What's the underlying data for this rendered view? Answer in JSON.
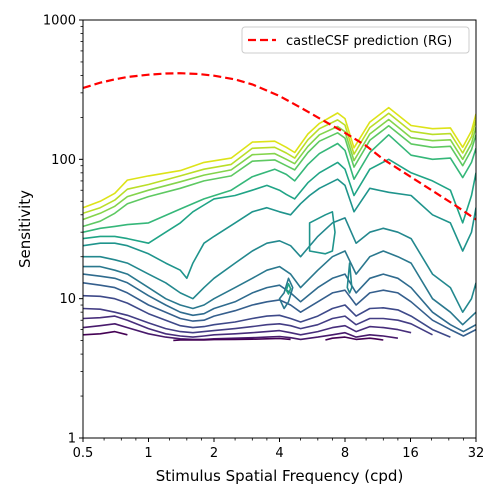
{
  "chart_data": {
    "type": "line",
    "title": "",
    "xlabel": "Stimulus Spatial Frequency (cpd)",
    "ylabel": "Sensitivity",
    "x_scale": "log2",
    "y_scale": "log10",
    "xlim": [
      0.5,
      32
    ],
    "ylim": [
      1,
      1000
    ],
    "x_ticks": [
      0.5,
      1,
      2,
      4,
      8,
      16,
      32
    ],
    "x_tick_labels": [
      "0.5",
      "1",
      "2",
      "4",
      "8",
      "16",
      "32"
    ],
    "y_ticks": [
      1,
      10,
      100,
      1000
    ],
    "y_tick_labels": [
      "1",
      "10",
      "100",
      "1000"
    ],
    "grid": false,
    "legend": {
      "placement": "top-right",
      "entries": [
        "castleCSF prediction (RG)"
      ]
    },
    "prediction_series": {
      "name": "castleCSF prediction (RG)",
      "color": "#ff0000",
      "style": "dashed",
      "x": [
        0.5,
        0.6,
        0.7,
        0.8,
        1.0,
        1.2,
        1.4,
        1.7,
        2.0,
        2.5,
        3.0,
        4.0,
        5.0,
        6.0,
        8.0,
        10.0,
        12.0,
        16.0,
        20.0,
        25.0,
        32.0
      ],
      "y": [
        325,
        355,
        375,
        390,
        405,
        413,
        415,
        410,
        398,
        375,
        345,
        285,
        235,
        200,
        155,
        125,
        100,
        75,
        60,
        48,
        37
      ]
    },
    "contour_lines": [
      {
        "color": "#dde318",
        "x": [
          0.5,
          0.6,
          0.7,
          0.8,
          1.0,
          1.4,
          1.8,
          2.4,
          3.0,
          3.8,
          4.3,
          4.7,
          5.4,
          6.1,
          7.4,
          8.0,
          8.8,
          10.4,
          12.7,
          16.1,
          20.2,
          24.4,
          27.8,
          30.5,
          32.0
        ],
        "y": [
          45,
          50,
          57,
          71,
          76,
          83,
          95,
          102,
          133,
          135,
          122,
          112,
          152,
          181,
          215,
          196,
          121,
          185,
          235,
          175,
          166,
          168,
          122,
          160,
          212
        ]
      },
      {
        "color": "#bade28",
        "x": [
          0.5,
          0.6,
          0.7,
          0.8,
          1.0,
          1.4,
          1.8,
          2.4,
          3.0,
          3.8,
          4.3,
          4.7,
          5.4,
          6.1,
          7.4,
          8.0,
          8.8,
          10.4,
          12.7,
          16.1,
          20.2,
          24.4,
          27.8,
          30.5,
          32.0
        ],
        "y": [
          41,
          45,
          51,
          61,
          66,
          76,
          85,
          92,
          120,
          122,
          111,
          102,
          138,
          166,
          192,
          176,
          109,
          169,
          214,
          159,
          151,
          153,
          111,
          145,
          192
        ]
      },
      {
        "color": "#84d44b",
        "x": [
          0.5,
          0.6,
          0.7,
          0.8,
          1.0,
          1.4,
          1.8,
          2.4,
          3.0,
          3.8,
          4.3,
          4.7,
          5.4,
          6.1,
          7.4,
          8.0,
          8.8,
          10.4,
          12.7,
          16.1,
          20.2,
          24.4,
          27.8,
          30.5,
          32.0
        ],
        "y": [
          37,
          41,
          46,
          54,
          60,
          69,
          77,
          84,
          108,
          110,
          100,
          93,
          124,
          150,
          172,
          158,
          98,
          152,
          193,
          143,
          136,
          138,
          100,
          130,
          170
        ]
      },
      {
        "color": "#5ec962",
        "x": [
          0.5,
          0.6,
          0.7,
          0.8,
          1.0,
          1.4,
          1.8,
          2.4,
          3.0,
          3.8,
          4.3,
          4.7,
          5.4,
          6.1,
          7.4,
          8.0,
          8.8,
          10.4,
          12.7,
          16.1,
          20.2,
          24.4,
          27.8,
          30.5,
          32.0
        ],
        "y": [
          33,
          36,
          41,
          48,
          54,
          62,
          70,
          76,
          97,
          99,
          90,
          84,
          112,
          135,
          155,
          142,
          88,
          137,
          174,
          129,
          122,
          124,
          90,
          117,
          150
        ]
      },
      {
        "color": "#35b779",
        "x": [
          0.5,
          0.6,
          0.7,
          0.8,
          1.0,
          1.4,
          1.8,
          2.4,
          3.0,
          3.8,
          4.3,
          4.7,
          5.4,
          6.1,
          7.4,
          8.0,
          8.8,
          10.4,
          12.7,
          16.1,
          20.2,
          24.4,
          27.8,
          30.5,
          32.0
        ],
        "y": [
          30,
          32,
          33,
          34,
          35,
          44,
          52,
          60,
          75,
          85,
          78,
          70,
          92,
          110,
          130,
          116,
          72,
          112,
          150,
          107,
          100,
          102,
          74,
          95,
          120
        ]
      },
      {
        "color": "#20a486",
        "x": [
          0.5,
          0.6,
          0.7,
          0.8,
          1.0,
          1.2,
          1.4,
          1.6,
          1.8,
          2.0,
          2.5,
          3.0,
          3.5,
          4.0,
          4.3,
          4.7,
          5.4,
          6.1,
          7.4,
          8.0,
          8.8,
          10.4,
          12.7,
          16.1,
          20.2,
          24.4,
          27.8,
          30.5,
          32.0
        ],
        "y": [
          27,
          28,
          28,
          27,
          25,
          30,
          35,
          42,
          47,
          52,
          55,
          60,
          65,
          60,
          56,
          52,
          68,
          80,
          95,
          85,
          55,
          85,
          100,
          80,
          70,
          60,
          35,
          55,
          80
        ]
      },
      {
        "color": "#1f948c",
        "x": [
          0.5,
          0.6,
          0.7,
          0.8,
          1.0,
          1.2,
          1.4,
          1.5,
          1.6,
          1.8,
          2.0,
          2.5,
          3.0,
          3.5,
          4.0,
          4.5,
          5.0,
          5.5,
          6.1,
          7.4,
          8.0,
          8.8,
          10.4,
          12.7,
          16.1,
          20.2,
          24.4,
          27.8,
          30.5,
          32.0
        ],
        "y": [
          24,
          25,
          25,
          24,
          21,
          18,
          16,
          14,
          18,
          25,
          28,
          35,
          42,
          45,
          42,
          40,
          48,
          55,
          62,
          72,
          65,
          42,
          62,
          58,
          55,
          40,
          35,
          22,
          30,
          45
        ]
      },
      {
        "color": "#23888e",
        "x": [
          0.5,
          0.6,
          0.7,
          0.8,
          1.0,
          1.2,
          1.4,
          1.6,
          1.8,
          2.0,
          2.5,
          3.0,
          3.5,
          4.0,
          4.5,
          5.0,
          6.0,
          7.0,
          8.0,
          9.0,
          10.4,
          12.0,
          14.0,
          16.1,
          20.2,
          24.4,
          27.8,
          30.5,
          32.0
        ],
        "y": [
          20,
          20,
          19,
          18,
          15,
          13,
          11,
          10,
          12,
          14,
          18,
          22,
          25,
          26,
          24,
          20,
          28,
          35,
          38,
          25,
          30,
          32,
          30,
          27,
          15,
          12,
          8,
          10,
          13
        ]
      },
      {
        "color": "#2a788e",
        "x": [
          0.5,
          0.6,
          0.7,
          0.8,
          1.0,
          1.2,
          1.4,
          1.6,
          1.8,
          2.0,
          2.5,
          3.0,
          3.5,
          4.0,
          4.5,
          5.0,
          6.0,
          7.0,
          8.0,
          9.0,
          10.4,
          12.0,
          14.0,
          16.1,
          20.2,
          24.4,
          27.8,
          32.0
        ],
        "y": [
          17,
          17,
          16,
          15,
          12,
          10,
          9,
          8.5,
          9,
          10,
          12,
          14,
          16,
          17,
          15,
          12,
          16,
          20,
          22,
          15,
          20,
          22,
          20,
          18,
          10,
          8,
          6.5,
          8
        ]
      },
      {
        "color": "#2f6b8e",
        "x": [
          0.5,
          0.6,
          0.7,
          0.8,
          1.0,
          1.2,
          1.4,
          1.6,
          1.8,
          2.0,
          2.5,
          3.0,
          3.5,
          4.0,
          4.5,
          5.0,
          6.0,
          7.0,
          8.0,
          9.0,
          10.4,
          12.0,
          14.0,
          16.1,
          20.2,
          24.4,
          28.0,
          32.0
        ],
        "y": [
          15,
          14.5,
          14,
          13,
          10.5,
          9,
          8,
          7.6,
          7.8,
          8.5,
          9.5,
          11,
          12,
          12.5,
          11,
          9.5,
          12,
          14,
          15,
          11,
          14,
          15,
          14,
          12,
          8,
          6.5,
          5.8,
          6.5
        ]
      },
      {
        "color": "#355f8d",
        "x": [
          0.5,
          0.6,
          0.7,
          0.8,
          1.0,
          1.2,
          1.4,
          1.6,
          1.8,
          2.0,
          2.5,
          3.0,
          3.5,
          4.0,
          4.5,
          5.0,
          6.0,
          7.0,
          8.0,
          9.0,
          10.4,
          12.0,
          14.0,
          16.1,
          20.2,
          24.4,
          28.0,
          32.0
        ],
        "y": [
          13,
          12.5,
          12,
          11,
          9,
          8,
          7.2,
          6.9,
          7,
          7.5,
          8.2,
          9,
          9.5,
          9.8,
          9,
          8,
          9.5,
          11,
          11.5,
          9,
          11,
          11.5,
          11,
          9.5,
          7,
          6,
          5.4,
          6
        ]
      },
      {
        "color": "#3e4989",
        "x": [
          0.5,
          0.6,
          0.7,
          0.8,
          1.0,
          1.2,
          1.4,
          1.6,
          1.8,
          2.0,
          2.5,
          3.0,
          3.5,
          4.0,
          4.5,
          5.0,
          6.0,
          7.0,
          8.0,
          9.0,
          10.4,
          12.0,
          14.0,
          16.1,
          20.2,
          24.4
        ],
        "y": [
          10.5,
          10.4,
          10,
          9.3,
          7.8,
          7,
          6.4,
          6.2,
          6.3,
          6.5,
          6.8,
          7.2,
          7.5,
          7.6,
          7.2,
          6.8,
          7.5,
          8.5,
          9,
          7.5,
          8.5,
          8.6,
          8.3,
          7.5,
          6,
          5.3
        ]
      },
      {
        "color": "#433d84",
        "x": [
          0.5,
          0.6,
          0.7,
          0.8,
          1.0,
          1.2,
          1.4,
          1.6,
          1.8,
          2.0,
          2.5,
          3.0,
          3.5,
          4.0,
          4.5,
          5.0,
          6.0,
          7.0,
          8.0,
          9.0,
          10.4,
          12.0,
          14.0,
          16.1,
          20.2
        ],
        "y": [
          8.5,
          8.4,
          8,
          7.6,
          6.7,
          6.1,
          5.8,
          5.7,
          5.8,
          5.9,
          6.1,
          6.3,
          6.5,
          6.6,
          6.4,
          6.1,
          6.5,
          7.2,
          7.5,
          6.5,
          7.2,
          7.2,
          7,
          6.6,
          5.5
        ]
      },
      {
        "color": "#472d7b",
        "x": [
          0.5,
          0.6,
          0.7,
          0.8,
          1.0,
          1.2,
          1.4,
          1.6,
          1.8,
          2.0,
          2.5,
          3.0,
          3.5,
          4.0,
          4.5,
          5.0,
          6.0,
          7.0,
          8.0,
          9.0,
          10.4,
          12.0,
          14.0,
          16.1
        ],
        "y": [
          7.2,
          7.3,
          7.5,
          7,
          6.1,
          5.6,
          5.4,
          5.3,
          5.4,
          5.5,
          5.6,
          5.7,
          5.8,
          5.9,
          5.7,
          5.5,
          5.8,
          6.2,
          6.4,
          5.8,
          6.3,
          6.2,
          6,
          5.7
        ]
      },
      {
        "color": "#481a6c",
        "x": [
          0.5,
          0.6,
          0.7,
          0.8,
          1.0,
          1.2,
          1.4,
          1.6,
          1.8,
          2.0,
          2.5,
          3.0,
          3.5,
          4.0,
          4.5,
          5.0,
          6.0,
          7.0,
          8.0,
          9.0,
          10.4,
          12.0,
          14.0
        ],
        "y": [
          6.2,
          6.4,
          6.6,
          6.2,
          5.6,
          5.3,
          5.15,
          5.1,
          5.1,
          5.15,
          5.2,
          5.25,
          5.3,
          5.35,
          5.25,
          5.1,
          5.3,
          5.5,
          5.7,
          5.3,
          5.5,
          5.4,
          5.2
        ]
      },
      {
        "color": "#440154",
        "x": [
          0.5,
          0.6,
          0.7,
          0.8
        ],
        "y": [
          5.5,
          5.6,
          5.8,
          5.5
        ]
      },
      {
        "color": "#440154",
        "x": [
          1.3,
          1.4,
          1.6,
          1.8,
          2.0,
          2.5,
          3.0,
          3.5,
          4.0,
          4.5
        ],
        "y": [
          5.02,
          5.05,
          5.05,
          5.05,
          5.08,
          5.1,
          5.12,
          5.15,
          5.18,
          5.1
        ]
      },
      {
        "color": "#440154",
        "x": [
          6.5,
          7.0,
          8.0,
          9.0,
          10.4,
          11.0,
          12.0
        ],
        "y": [
          5.05,
          5.2,
          5.3,
          5.1,
          5.2,
          5.15,
          5.05
        ]
      },
      {
        "color": "#2a788e",
        "closed": true,
        "x": [
          4.2,
          4.4,
          4.6,
          4.4,
          4.2,
          4.0
        ],
        "y": [
          11,
          14,
          12,
          9.5,
          8.5,
          10
        ]
      },
      {
        "color": "#20a486",
        "closed": true,
        "x": [
          4.3,
          4.4,
          4.5,
          4.4,
          4.3
        ],
        "y": [
          11.5,
          12.8,
          11.8,
          10.8,
          11.5
        ]
      },
      {
        "color": "#1f948c",
        "closed": true,
        "x": [
          5.5,
          6.5,
          7.0,
          7.2,
          7.0,
          6.5,
          5.5
        ],
        "y": [
          35,
          40,
          42,
          30,
          22,
          21,
          22
        ]
      },
      {
        "color": "#23888e",
        "closed": true,
        "x": [
          8.2,
          8.4,
          8.6,
          8.4,
          8.2
        ],
        "y": [
          12,
          18,
          12,
          11,
          12
        ]
      }
    ]
  }
}
